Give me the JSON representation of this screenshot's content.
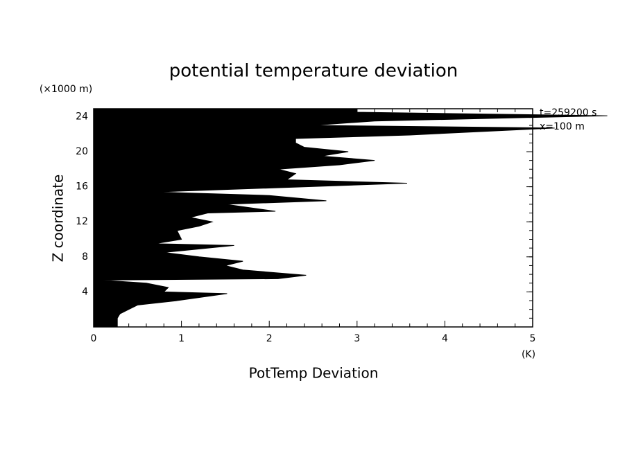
{
  "chart_data": {
    "type": "profile",
    "title": "potential temperature deviation",
    "x_label": "PotTemp Deviation",
    "x_unit": "(K)",
    "y_label": "Z coordinate",
    "y_unit": "(×1000 m)",
    "annotations": [
      "t=259200 s",
      "x=100 m"
    ],
    "color": "#000000",
    "xlim": [
      0,
      5
    ],
    "xticks": [
      0,
      1,
      2,
      3,
      4,
      5
    ],
    "ylim": [
      0,
      24.9
    ],
    "yticks": [
      4,
      8,
      12,
      16,
      20,
      24
    ],
    "y": [
      0,
      1,
      1.5,
      2,
      2.5,
      3,
      3.8,
      4,
      4.5,
      5,
      5.35,
      5.5,
      5.9,
      6.5,
      7,
      7.5,
      8,
      8.5,
      9.3,
      9.5,
      10,
      11,
      11.5,
      12,
      12.5,
      13,
      13.2,
      14,
      14.4,
      15,
      15.4,
      16.4,
      16.8,
      17.5,
      18,
      18.5,
      19,
      19.5,
      20,
      20.5,
      21,
      21.5,
      21.9,
      22.7,
      23,
      23.5,
      24.1,
      24.5,
      24.9
    ],
    "x": [
      0.27,
      0.27,
      0.3,
      0.4,
      0.5,
      0.95,
      1.52,
      0.8,
      0.85,
      0.6,
      0.08,
      2.1,
      2.42,
      1.7,
      1.5,
      1.7,
      1.2,
      0.8,
      1.6,
      0.7,
      1.0,
      0.95,
      1.2,
      1.35,
      1.1,
      1.3,
      2.07,
      1.5,
      2.65,
      2.0,
      0.7,
      3.57,
      2.2,
      2.3,
      2.1,
      2.8,
      3.2,
      2.6,
      2.9,
      2.4,
      2.3,
      2.3,
      3.6,
      5.25,
      2.5,
      3.2,
      5.85,
      3.0,
      3.0
    ]
  }
}
